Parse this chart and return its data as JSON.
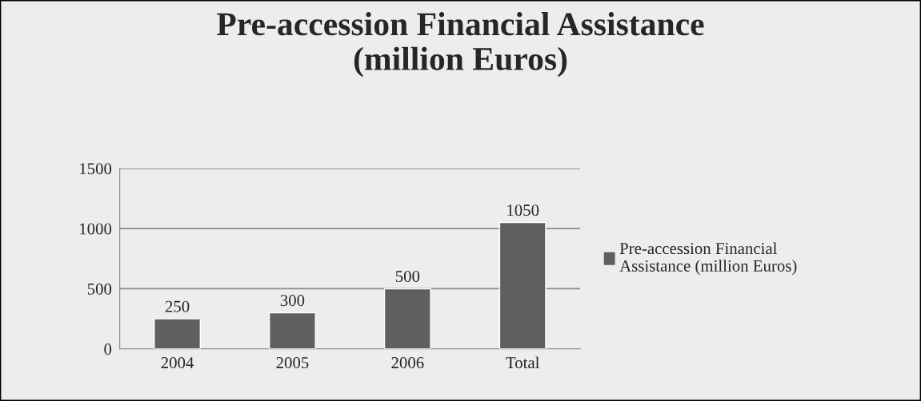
{
  "chart_data": {
    "type": "bar",
    "title": "Pre-accession Financial Assistance\n(million Euros)",
    "categories": [
      "2004",
      "2005",
      "2006",
      "Total"
    ],
    "series": [
      {
        "name": "Pre-accession Financial\nAssistance (million Euros)",
        "color": "#5f5f5f",
        "values": [
          250,
          300,
          500,
          1050
        ]
      }
    ],
    "ylim": [
      0,
      1500
    ],
    "yticks": [
      0,
      500,
      1000,
      1500
    ],
    "grid": "y",
    "legend": "right",
    "data_labels": true
  }
}
